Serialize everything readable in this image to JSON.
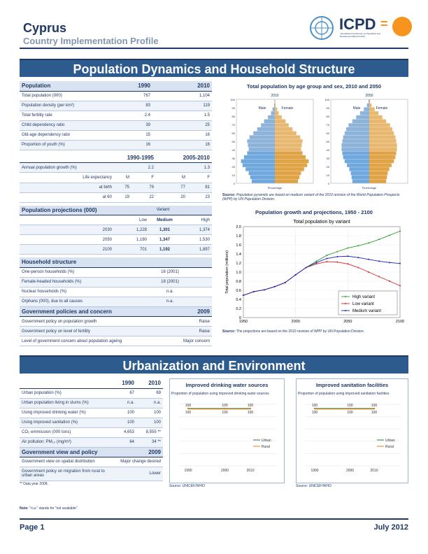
{
  "header": {
    "title": "Cyprus",
    "subtitle": "Country Implementation Profile",
    "logo_text": "ICPD",
    "logo_eq": "=",
    "logo_small": "International Conference on Population and Development Beyond 2014"
  },
  "section1": {
    "title": "Population Dynamics and Household Structure"
  },
  "pop_table": {
    "head": {
      "label": "Population",
      "c1": "1990",
      "c2": "2010"
    },
    "rows": [
      {
        "label": "Total population (000)",
        "v1": "767",
        "v2": "1,104"
      },
      {
        "label": "Population density (per km²)",
        "v1": "83",
        "v2": "119"
      },
      {
        "label": "Total fertility rate",
        "v1": "2.4",
        "v2": "1.5"
      },
      {
        "label": "Child dependency ratio",
        "v1": "39",
        "v2": "25"
      },
      {
        "label": "Old-age dependency ratio",
        "v1": "15",
        "v2": "16"
      },
      {
        "label": "Proportion of youth (%)",
        "v1": "16",
        "v2": "16"
      }
    ],
    "head2": {
      "c1": "1990-1995",
      "c2": "2005-2010"
    },
    "growth": {
      "label": "Annual population growth (%)",
      "v1": "2.2",
      "v2": "1.3"
    },
    "life": {
      "label": "Life expectancy",
      "m1": "M",
      "f1": "F",
      "m2": "M",
      "f2": "F"
    },
    "birth": {
      "label": "at birth",
      "a": "75",
      "b": "79",
      "c": "77",
      "d": "81"
    },
    "sixty": {
      "label": "at 60",
      "a": "19",
      "b": "22",
      "c": "20",
      "d": "23"
    }
  },
  "proj_table": {
    "head": "Population projections (000)",
    "variant": "Variant",
    "low": "Low",
    "medium": "Medium",
    "high": "High",
    "rows": [
      {
        "year": "2030",
        "low": "1,228",
        "med": "1,301",
        "high": "1,374"
      },
      {
        "year": "2050",
        "low": "1,180",
        "med": "1,347",
        "high": "1,530"
      },
      {
        "year": "2100",
        "low": "701",
        "med": "1,192",
        "high": "1,897"
      }
    ]
  },
  "household": {
    "head": "Household structure",
    "rows": [
      {
        "label": "One-person households (%)",
        "v": "16 (2001)"
      },
      {
        "label": "Female-headed households (%)",
        "v": "18 (2001)"
      },
      {
        "label": "Nuclear households (%)",
        "v": "n.a."
      },
      {
        "label": "Orphans (000), due to all causes",
        "v": "n.a."
      }
    ]
  },
  "policies": {
    "head": "Government policies and concern",
    "year": "2009",
    "rows": [
      {
        "label": "Government policy on population growth",
        "v": "Raise"
      },
      {
        "label": "Government policy on level of fertility",
        "v": "Raise"
      },
      {
        "label": "Level of government concern about population ageing",
        "v": "Major concern"
      }
    ]
  },
  "pyramid": {
    "title": "Total population by age group and sex, 2010 and 2050",
    "year1": "2010",
    "year2": "2050",
    "male": "Male",
    "female": "Female",
    "ages": [
      "0",
      "10",
      "20",
      "30",
      "40",
      "50",
      "60",
      "70",
      "80",
      "90",
      "100"
    ],
    "xlabel": "Percentage",
    "source_label": "Source:",
    "source": "Population pyramids are based on medium variant of the 2010 revision of the World Population Prospects (WPP) by UN Population Division."
  },
  "chart_data": {
    "type": "line",
    "title": "Population growth and projections, 1950 - 2100",
    "subtitle": "Total population by variant",
    "ylabel": "Total population (millions)",
    "xlim": [
      1950,
      2100
    ],
    "ylim": [
      0,
      2.0
    ],
    "yticks": [
      "0",
      "0.2",
      "0.4",
      "0.6",
      "0.8",
      "1.0",
      "1.2",
      "1.4",
      "1.6",
      "1.8",
      "2.0"
    ],
    "xticks": [
      "1950",
      "2000",
      "2050",
      "2100"
    ],
    "series": [
      {
        "name": "High variant",
        "color": "#2ca02c",
        "x": [
          1950,
          1960,
          1970,
          1980,
          1990,
          2000,
          2010,
          2020,
          2030,
          2040,
          2050,
          2060,
          2070,
          2080,
          2090,
          2100
        ],
        "values": [
          0.49,
          0.57,
          0.61,
          0.68,
          0.77,
          0.94,
          1.1,
          1.24,
          1.37,
          1.45,
          1.53,
          1.58,
          1.64,
          1.72,
          1.81,
          1.9
        ]
      },
      {
        "name": "Low variant",
        "color": "#d62728",
        "x": [
          1950,
          1960,
          1970,
          1980,
          1990,
          2000,
          2010,
          2020,
          2030,
          2040,
          2050,
          2060,
          2070,
          2080,
          2090,
          2100
        ],
        "values": [
          0.49,
          0.57,
          0.61,
          0.68,
          0.77,
          0.94,
          1.1,
          1.18,
          1.23,
          1.22,
          1.18,
          1.1,
          1.0,
          0.9,
          0.8,
          0.7
        ]
      },
      {
        "name": "Medium variant",
        "color": "#1f1fbf",
        "x": [
          1950,
          1960,
          1970,
          1980,
          1990,
          2000,
          2010,
          2020,
          2030,
          2040,
          2050,
          2060,
          2070,
          2080,
          2090,
          2100
        ],
        "values": [
          0.49,
          0.57,
          0.61,
          0.68,
          0.77,
          0.94,
          1.1,
          1.21,
          1.3,
          1.34,
          1.35,
          1.32,
          1.28,
          1.24,
          1.21,
          1.19
        ]
      }
    ],
    "source_label": "Source:",
    "source": "The projections are based on the 2010 revision of WPP by UN Population Division."
  },
  "section2": {
    "title": "Urbanization and Environment"
  },
  "urban_table": {
    "c1": "1990",
    "c2": "2010",
    "rows": [
      {
        "label": "Urban population (%)",
        "v1": "67",
        "v2": "69"
      },
      {
        "label": "Urban population living in slums (%)",
        "v1": "n.a.",
        "v2": "n.a."
      },
      {
        "label": "Using improved drinking water (%)",
        "v1": "100",
        "v2": "100"
      },
      {
        "label": "Using improved sanitation (%)",
        "v1": "100",
        "v2": "100"
      },
      {
        "label": "CO₂ emmission (000 tons)",
        "v1": "4,653",
        "v2": "8,555 **"
      },
      {
        "label": "Air pollution: PM₁₀ (mg/m³)",
        "v1": "64",
        "v2": "34 **"
      }
    ],
    "view_head": "Government view and policy",
    "view_year": "2009",
    "views": [
      {
        "label": "Government view on spatial distribution",
        "v": "Major change desired"
      },
      {
        "label": "Government policy on migration from rural to urban areas",
        "v": "Lower"
      }
    ],
    "footnote": "** Data year 2008."
  },
  "water": {
    "title": "Improved drinking water sources",
    "caption": "Proportion of population using improved drinking water sources",
    "urban": "Urban",
    "rural": "Rural",
    "labels": [
      "100",
      "100",
      "100"
    ],
    "labels2": [
      "100",
      "100",
      "100"
    ],
    "years": [
      "1990",
      "2000",
      "2010"
    ],
    "source": "Source: UNICEF/WHO"
  },
  "sanit": {
    "title": "Improved sanitation facilities",
    "caption": "Proportion of population using improved sanitation facilities",
    "urban": "Urban",
    "rural": "Rural",
    "labels": [
      "100",
      "100",
      "100"
    ],
    "labels2": [
      "100",
      "100",
      "100"
    ],
    "years": [
      "1990",
      "2000",
      "2010"
    ],
    "source": "Source: UNICEF/WHO"
  },
  "note": {
    "label": "Note:",
    "text": "\"n.a.\" stands for \"not available\"."
  },
  "footer": {
    "page": "Page 1",
    "date": "July 2012"
  },
  "colors": {
    "navy": "#1f3864",
    "band": "#2e5b8e",
    "male": "#6fa8dc",
    "female": "#e0a346",
    "urban": "#2e7d32",
    "rural": "#e07b1a"
  }
}
